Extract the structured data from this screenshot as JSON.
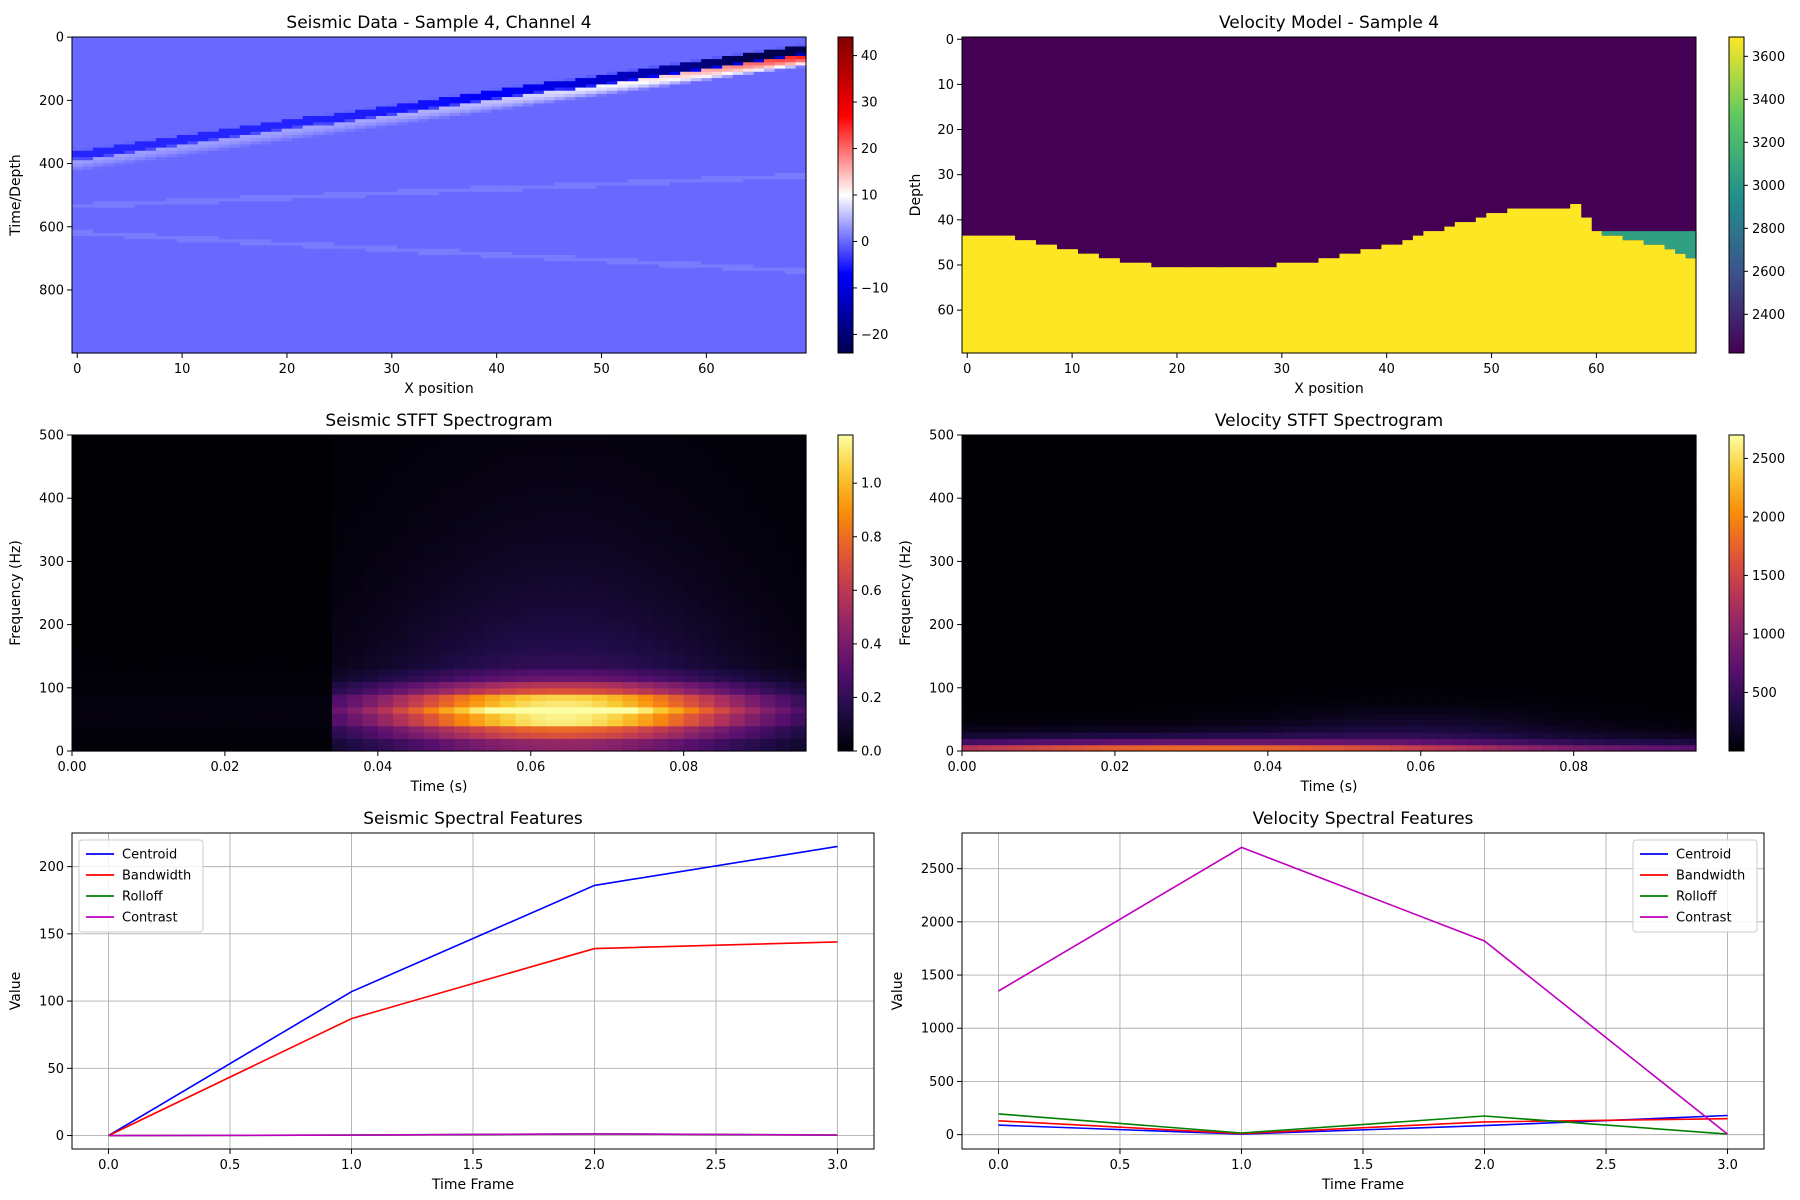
{
  "chart_data": [
    {
      "id": "seismic_data",
      "type": "heatmap",
      "title": "Seismic Data - Sample 4, Channel 4",
      "xlabel": "X position",
      "ylabel": "Time/Depth",
      "xticks": [
        "0",
        "10",
        "20",
        "30",
        "40",
        "50",
        "60"
      ],
      "yticks": [
        "0",
        "200",
        "400",
        "600",
        "800"
      ],
      "colorbar_ticks": [
        "40",
        "30",
        "20",
        "10",
        "0",
        "−10",
        "−20"
      ],
      "colorbar_range": [
        -24,
        44
      ],
      "colormap": "seismic",
      "xlim": [
        -0.5,
        69.5
      ],
      "ylim": [
        999.5,
        -0.5
      ],
      "features": [
        {
          "kind": "direct_wave",
          "from": [
            0,
            390
          ],
          "to": [
            69,
            60
          ]
        },
        {
          "kind": "reflection",
          "from": [
            0,
            535
          ],
          "to": [
            69,
            440
          ]
        },
        {
          "kind": "reflection",
          "from": [
            0,
            620
          ],
          "to": [
            69,
            740
          ]
        }
      ]
    },
    {
      "id": "velocity_model",
      "type": "heatmap",
      "title": "Velocity Model - Sample 4",
      "xlabel": "X position",
      "ylabel": "Depth",
      "xticks": [
        "0",
        "10",
        "20",
        "30",
        "40",
        "50",
        "60"
      ],
      "yticks": [
        "0",
        "10",
        "20",
        "30",
        "40",
        "50",
        "60"
      ],
      "colorbar_ticks": [
        "3600",
        "3400",
        "3200",
        "3000",
        "2800",
        "2600",
        "2400"
      ],
      "colorbar_range": [
        2220,
        3690
      ],
      "colormap": "viridis",
      "xlim": [
        -0.5,
        69.5
      ],
      "ylim": [
        69.5,
        -0.5
      ],
      "layers": {
        "top_velocity": 2220,
        "bottom_velocity": 3690,
        "block_velocity": 3050
      },
      "interface_depth": [
        44,
        44,
        44,
        44,
        44,
        45,
        45,
        46,
        46,
        47,
        47,
        48,
        48,
        49,
        49,
        50,
        50,
        50,
        51,
        51,
        51,
        51,
        51,
        51,
        51,
        51,
        51,
        51,
        51,
        51,
        50,
        50,
        50,
        50,
        49,
        49,
        48,
        48,
        47,
        47,
        46,
        46,
        45,
        44,
        43,
        43,
        42,
        41,
        41,
        40,
        39,
        39,
        38,
        38,
        38,
        38,
        38,
        38,
        37,
        40,
        43,
        44,
        44,
        45,
        45,
        46,
        46,
        47,
        48,
        49
      ]
    },
    {
      "id": "seismic_stft",
      "type": "heatmap",
      "title": "Seismic STFT Spectrogram",
      "xlabel": "Time (s)",
      "ylabel": "Frequency (Hz)",
      "xticks": [
        "0.00",
        "0.02",
        "0.04",
        "0.06",
        "0.08"
      ],
      "yticks": [
        "0",
        "100",
        "200",
        "300",
        "400",
        "500"
      ],
      "colorbar_ticks": [
        "1.0",
        "0.8",
        "0.6",
        "0.4",
        "0.2",
        "0.0"
      ],
      "colorbar_range": [
        0,
        1.18
      ],
      "colormap": "inferno",
      "xlim": [
        0,
        0.096
      ],
      "ylim": [
        0,
        500
      ],
      "energy_peak": {
        "time": 0.064,
        "frequency": 65,
        "value": 1.18
      },
      "onset_time": 0.034
    },
    {
      "id": "velocity_stft",
      "type": "heatmap",
      "title": "Velocity STFT Spectrogram",
      "xlabel": "Time (s)",
      "ylabel": "Frequency (Hz)",
      "xticks": [
        "0.00",
        "0.02",
        "0.04",
        "0.06",
        "0.08"
      ],
      "yticks": [
        "0",
        "100",
        "200",
        "300",
        "400",
        "500"
      ],
      "colorbar_ticks": [
        "2500",
        "2000",
        "1500",
        "1000",
        "500"
      ],
      "colorbar_range": [
        0,
        2700
      ],
      "colormap": "inferno",
      "xlim": [
        0,
        0.096
      ],
      "ylim": [
        0,
        500
      ],
      "energy_peak": {
        "time": 0.03,
        "frequency": 0,
        "value": 2700
      }
    },
    {
      "id": "seismic_features",
      "type": "line",
      "title": "Seismic Spectral Features",
      "xlabel": "Time Frame",
      "ylabel": "Value",
      "x": [
        0,
        1,
        2,
        3
      ],
      "xticks": [
        "0.0",
        "0.5",
        "1.0",
        "1.5",
        "2.0",
        "2.5",
        "3.0"
      ],
      "yticks": [
        "0",
        "50",
        "100",
        "150",
        "200"
      ],
      "xlim": [
        -0.15,
        3.15
      ],
      "ylim": [
        -10,
        225
      ],
      "grid": true,
      "legend": "upper left",
      "series": [
        {
          "name": "Centroid",
          "color": "#0000ff",
          "values": [
            0,
            107,
            186,
            215
          ]
        },
        {
          "name": "Bandwidth",
          "color": "#ff0000",
          "values": [
            0,
            87,
            139,
            144
          ]
        },
        {
          "name": "Rolloff",
          "color": "#008000",
          "values": [
            0,
            0.3,
            1.2,
            0.3
          ]
        },
        {
          "name": "Contrast",
          "color": "#bf00bf",
          "values": [
            0,
            0.3,
            1.2,
            0.3
          ]
        }
      ]
    },
    {
      "id": "velocity_features",
      "type": "line",
      "title": "Velocity Spectral Features",
      "xlabel": "Time Frame",
      "ylabel": "Value",
      "x": [
        0,
        1,
        2,
        3
      ],
      "xticks": [
        "0.0",
        "0.5",
        "1.0",
        "1.5",
        "2.0",
        "2.5",
        "3.0"
      ],
      "yticks": [
        "0",
        "500",
        "1000",
        "1500",
        "2000",
        "2500"
      ],
      "xlim": [
        -0.15,
        3.15
      ],
      "ylim": [
        -135,
        2835
      ],
      "grid": true,
      "legend": "upper right",
      "series": [
        {
          "name": "Centroid",
          "color": "#0000ff",
          "values": [
            90,
            5,
            85,
            180
          ]
        },
        {
          "name": "Bandwidth",
          "color": "#ff0000",
          "values": [
            130,
            10,
            120,
            150
          ]
        },
        {
          "name": "Rolloff",
          "color": "#008000",
          "values": [
            195,
            15,
            175,
            5
          ]
        },
        {
          "name": "Contrast",
          "color": "#bf00bf",
          "values": [
            1350,
            2700,
            1820,
            5
          ]
        }
      ]
    }
  ]
}
